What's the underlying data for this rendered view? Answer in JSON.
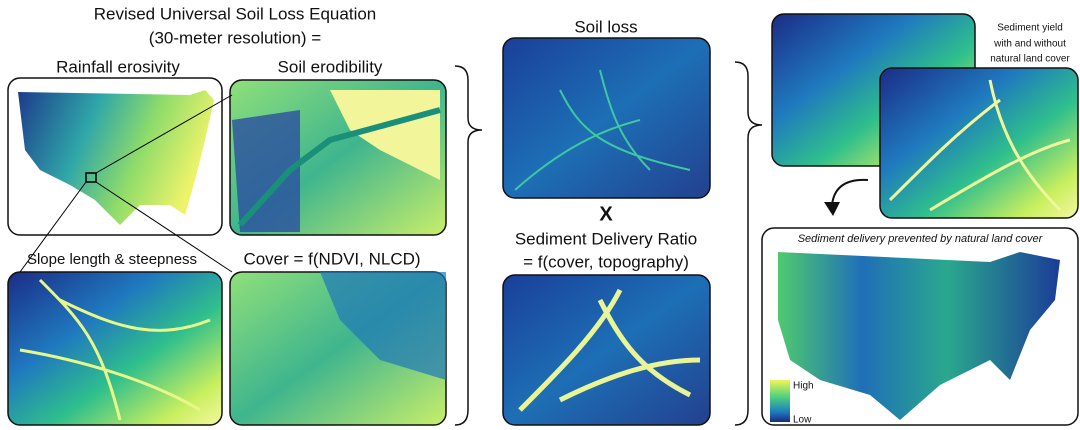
{
  "header": {
    "line1": "Revised Universal Soil Loss Equation",
    "line2": "(30-meter resolution) ="
  },
  "panels": {
    "rainfall": "Rainfall erosivity",
    "erodibility": "Soil erodibility",
    "slope": "Slope length & steepness",
    "cover": "Cover = f(NDVI, NLCD)",
    "soil_loss": "Soil loss",
    "times": "X",
    "sdr": {
      "line1": "Sediment Delivery Ratio",
      "line2": "= f(cover, topography)"
    },
    "sediment_yield": [
      "Sediment yield",
      "with and without",
      "natural land cover"
    ],
    "prevented": "Sediment delivery prevented by natural land cover"
  },
  "legend": {
    "high": "High",
    "low": "Low"
  }
}
